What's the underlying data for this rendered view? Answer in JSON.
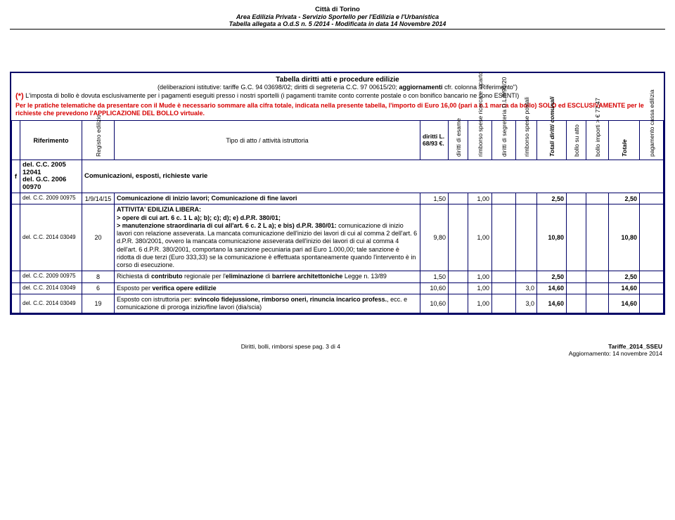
{
  "header": {
    "line1": "Città di Torino",
    "line2": "Area Edilizia Privata  -  Servizio Sportello per l'Edilizia e l'Urbanistica",
    "line3": "Tabella allegata a O.d.S n. 5 /2014 - Modificata  in data 14 Novembre 2014"
  },
  "title": {
    "line1": "Tabella diritti atti e procedure edilizie",
    "line2a": "(deliberazioni istitutive: tariffe G.C. 94 03698/02; diritti di segreteria C.C. 97 00615/20; ",
    "line2b": "aggiornamenti",
    "line2c": " cfr. colonna \"Riferimento\")"
  },
  "note": {
    "star": "(*)",
    "text1": " L'imposta di bollo è dovuta esclusivamente per i pagamenti eseguiti presso i nostri sportelli (i pagamenti tramite conto corrente postale o con bonifico bancario ne sono ESENTI)",
    "red1": "Per le pratiche telematiche da presentare con il Mude è necessario sommare alla cifra totale, indicata nella presente tabella, l'importo di Euro 16,00 (pari a n.1 marca da bollo) SOLO ed ESCLUSIVAMENTE per le richieste che prevedono l'APPLICAZIONE DEL BOLLO virtuale."
  },
  "columns": {
    "f": "f",
    "ref": "Riferimento",
    "reg": "Registro edilizio",
    "tipo": "Tipo di atto / attività istruttoria",
    "diritti_l": "diritti L. 68/93 €.",
    "diritti_esame": "diritti di esame",
    "rimborso_ricerca": "rimborso spese ricerca e incarto",
    "diritti_seg": "diritti di segreteria D.L.8/90/20",
    "rimborso_postali": "rimborso spese postali",
    "totali_diritti": "Totali diritti comunali",
    "bollo_atto": "bollo su atto",
    "bollo_importi": "bollo importi > € 77,47",
    "totale": "Totale",
    "pag_cassa": "pagamento cassa edilizia"
  },
  "section": {
    "ref1": "del. C.C. 2005 12041",
    "ref2": "del. G.C. 2006 00970",
    "title": "Comunicazioni, esposti, richieste varie"
  },
  "rows": [
    {
      "ref": "del. C.C. 2009 00975",
      "reg": "1/9/14/15",
      "desc_plain": "Comunicazione di inizio lavori; Comunicazione di fine lavori",
      "v": {
        "diritti_l": "1,50",
        "rimborso_ricerca": "1,00",
        "totali_diritti": "2,50",
        "totale": "2,50"
      }
    },
    {
      "ref": "del. C.C. 2014 03049",
      "reg": "20",
      "desc_html": "<b>ATTIVITA' EDILIZIA LIBERA:</b><br><b>&gt; opere di cui art. 6 c. 1 L a); b); c); d); e) d.P.R. 380/01;</b><br><b>&gt; manutenzione straordinaria di cui all'art. 6 c. 2 L a); e bis) d.P.R. 380/01:</b> comunicazione di inizio lavori con relazione asseverata. La mancata comunicazione dell'inizio dei lavori di cui al comma 2 dell'art. 6 d.P.R. 380/2001, ovvero la mancata comunicazione asseverata dell'inizio dei lavori di cui al comma 4 dell'art. 6 d.P.R. 380/2001, comportano la sanzione pecuniaria pari ad Euro 1.000,00; tale sanzione è ridotta di due terzi (Euro 333,33) se la comunicazione è effettuata spontaneamente quando l'intervento è in corso di esecuzione.",
      "v": {
        "diritti_l": "9,80",
        "rimborso_ricerca": "1,00",
        "totali_diritti": "10,80",
        "totale": "10,80"
      }
    },
    {
      "ref": "del. C.C. 2009 00975",
      "reg": "8",
      "desc_html": "Richiesta di <b>contributo</b> regionale per l'<b>eliminazione</b> di <b>barriere architettoniche</b> Legge n. 13/89",
      "v": {
        "diritti_l": "1,50",
        "rimborso_ricerca": "1,00",
        "totali_diritti": "2,50",
        "totale": "2,50"
      }
    },
    {
      "ref": "del. C.C. 2014 03049",
      "reg": "6",
      "desc_html": "Esposto per <b>verifica opere edilizie</b>",
      "v": {
        "diritti_l": "10,60",
        "rimborso_ricerca": "1,00",
        "rimborso_postali": "3,0",
        "totali_diritti": "14,60",
        "totale": "14,60"
      }
    },
    {
      "ref": "del. C.C. 2014 03049",
      "reg": "19",
      "desc_html": "Esposto con istruttoria per: <b>svincolo fidejussione, rimborso oneri, rinuncia incarico profess.</b>, ecc. e comunicazione di proroga inizio/fine lavori (dia/scia)",
      "v": {
        "diritti_l": "10,60",
        "rimborso_ricerca": "1,00",
        "rimborso_postali": "3,0",
        "totali_diritti": "14,60",
        "totale": "14,60"
      }
    }
  ],
  "footer": {
    "left": "Diritti, bolli, rimborsi spese pag. 3 di 4",
    "right1": "Tariffe_2014_SSEU",
    "right2": "Aggiornamento: 14 novembre 2014"
  },
  "colors": {
    "border": "#000066",
    "red": "#d60000"
  }
}
